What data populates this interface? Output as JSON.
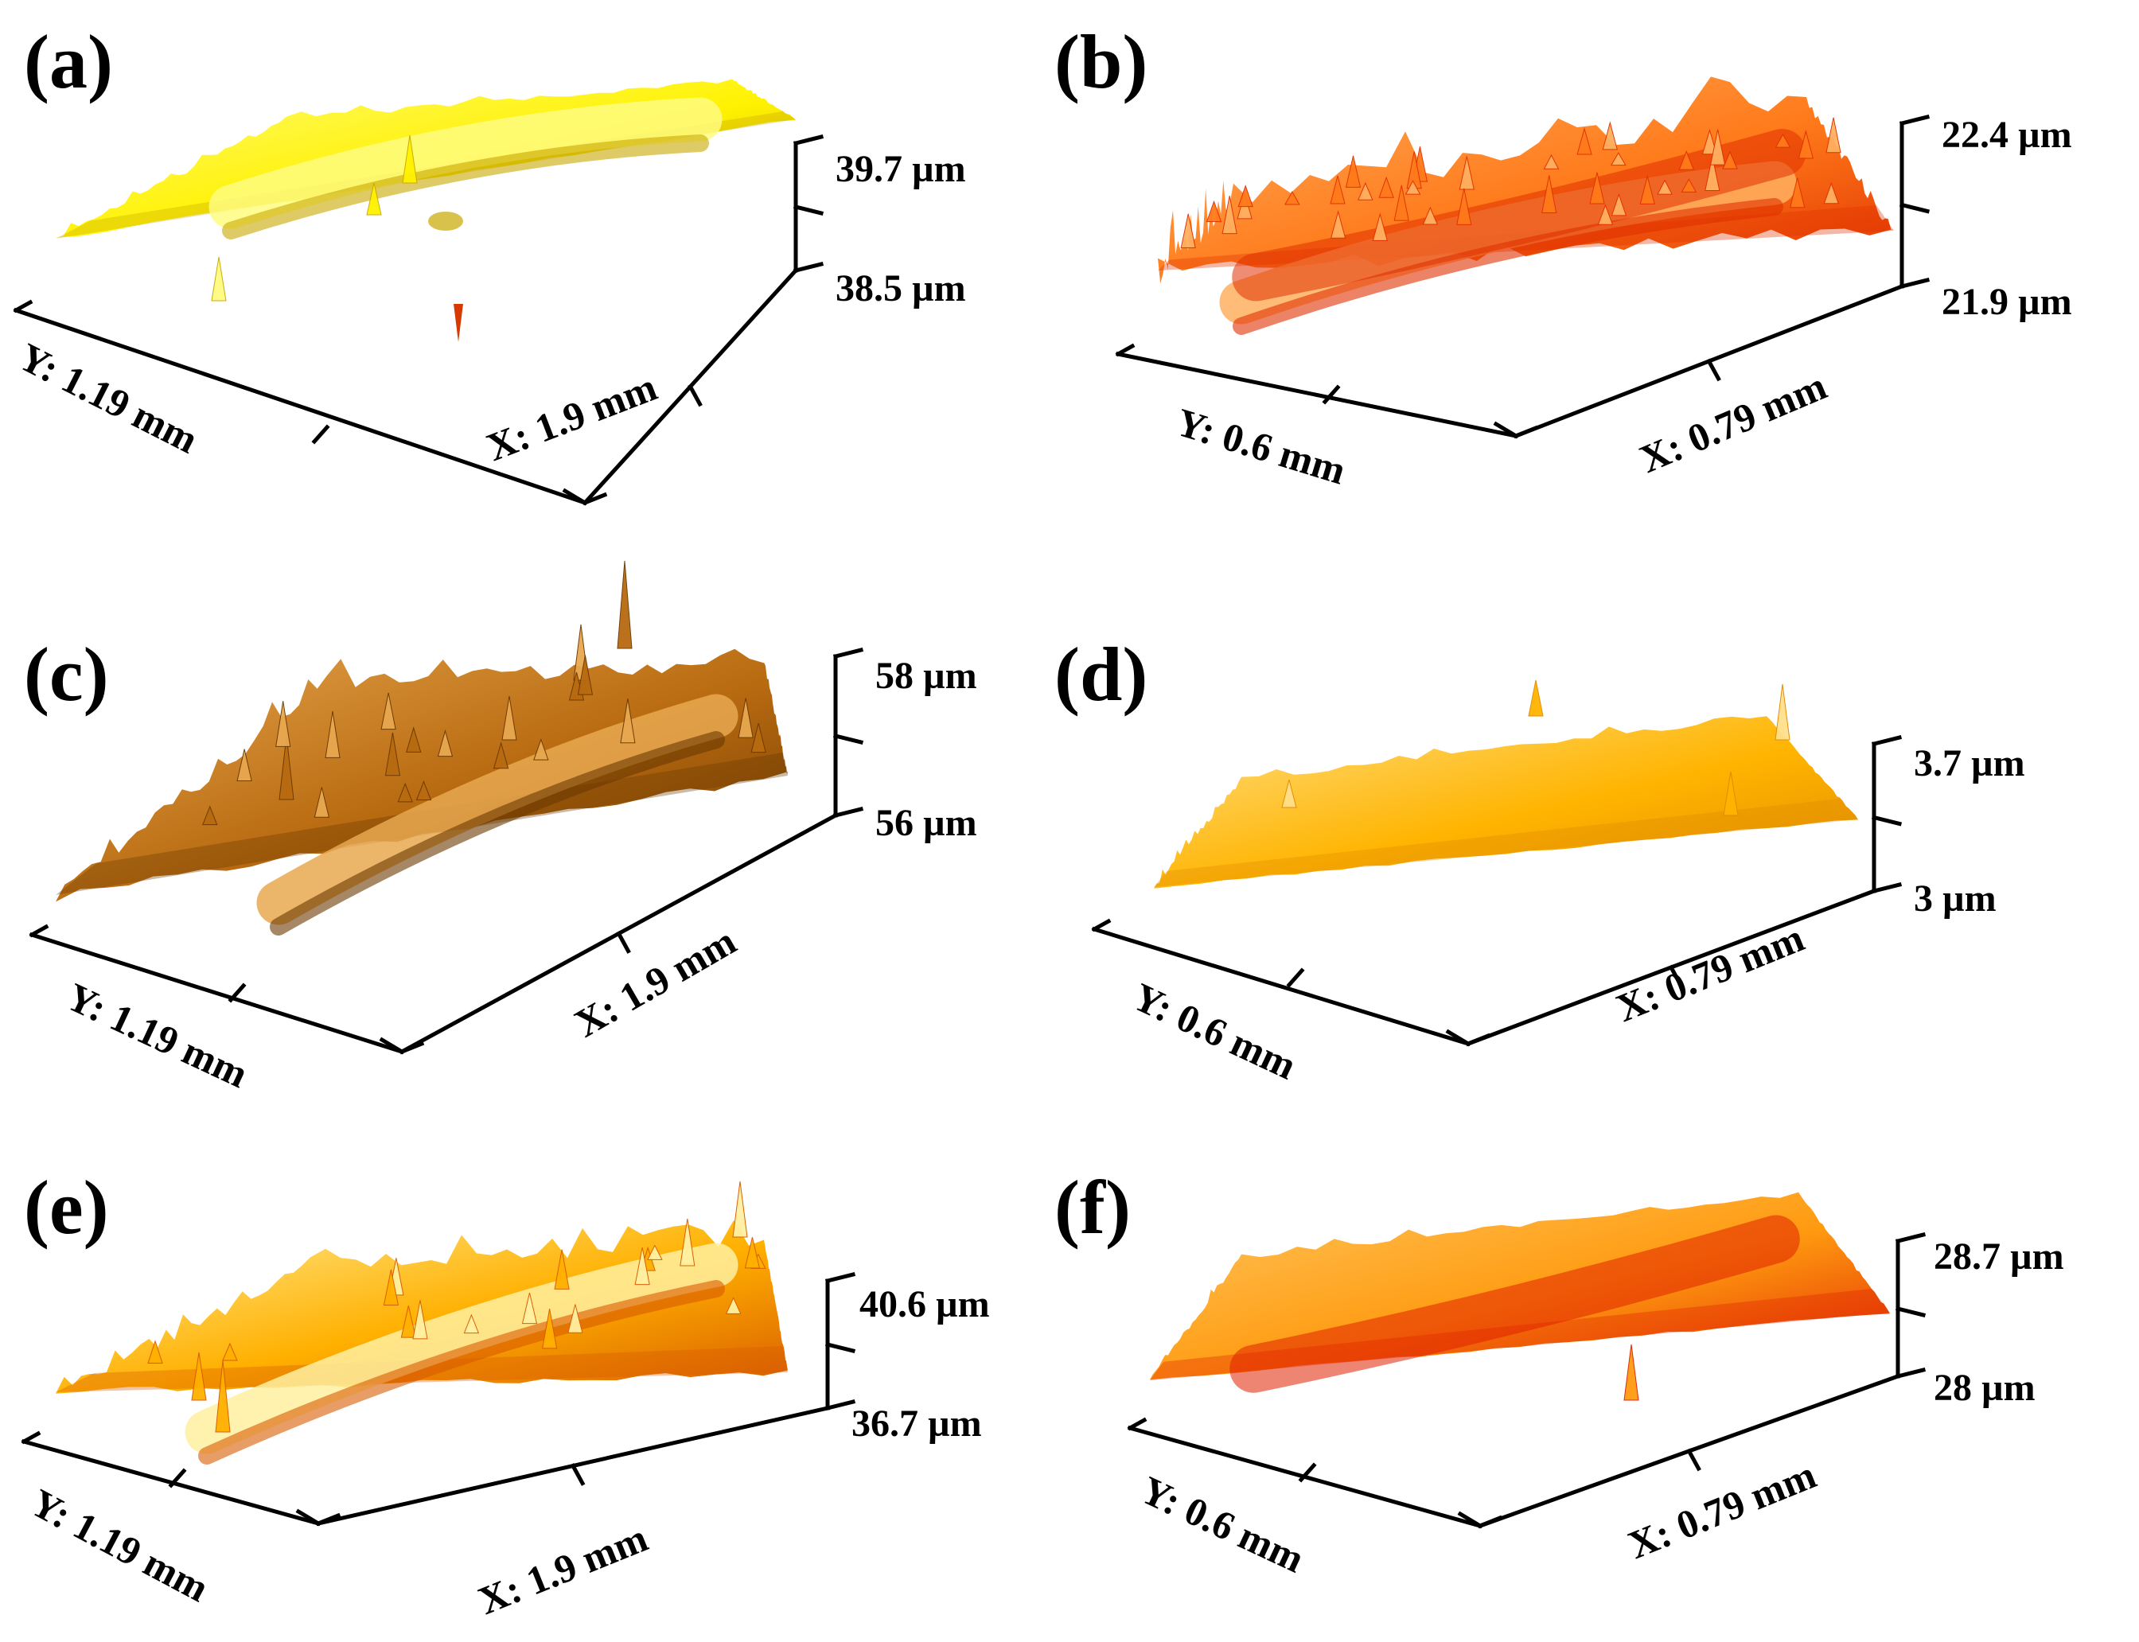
{
  "figure": {
    "panels": [
      {
        "id": "a",
        "label": "(a)",
        "z_top": "39.7 µm",
        "z_bottom": "38.5 µm",
        "y_label": "Y: 1.19 mm",
        "x_label": "X: 1.9 mm",
        "surface": {
          "base": "#fff200",
          "light": "#fffb80",
          "dark": "#c8a800",
          "feature": "smooth groove with single pit",
          "roughness": "low"
        }
      },
      {
        "id": "b",
        "label": "(b)",
        "z_top": "22.4 µm",
        "z_bottom": "21.9 µm",
        "y_label": "Y: 0.6 mm",
        "x_label": "X: 0.79 mm",
        "surface": {
          "base": "#ff7a1a",
          "light": "#ffb060",
          "dark": "#e03000",
          "feature": "rough surface with central trench",
          "roughness": "high"
        }
      },
      {
        "id": "c",
        "label": "(c)",
        "z_top": "58 µm",
        "z_bottom": "56 µm",
        "y_label": "Y: 1.19 mm",
        "x_label": "X: 1.9 mm",
        "surface": {
          "base": "#b86a10",
          "light": "#e8a850",
          "dark": "#6b3800",
          "feature": "raised ridge with spikes",
          "roughness": "medium"
        }
      },
      {
        "id": "d",
        "label": "(d)",
        "z_top": "3.7 µm",
        "z_bottom": "3 µm",
        "y_label": "Y: 0.6 mm",
        "x_label": "X: 0.79 mm",
        "surface": {
          "base": "#ffb400",
          "light": "#ffe08a",
          "dark": "#e08a00",
          "feature": "nearly flat surface with sparse peaks",
          "roughness": "low"
        }
      },
      {
        "id": "e",
        "label": "(e)",
        "z_top": "40.6 µm",
        "z_bottom": "36.7 µm",
        "y_label": "Y: 1.19 mm",
        "x_label": "X: 1.9 mm",
        "surface": {
          "base": "#ffb000",
          "light": "#fff0a0",
          "dark": "#d85a00",
          "feature": "pale ridge with spiky crest",
          "roughness": "medium"
        }
      },
      {
        "id": "f",
        "label": "(f)",
        "z_top": "28.7 µm",
        "z_bottom": "28 µm",
        "y_label": "Y: 0.6 mm",
        "x_label": "X: 0.79 mm",
        "surface": {
          "base": "#ff9a10",
          "light": "#ffc860",
          "dark": "#e02000",
          "feature": "smooth surface with dark wear track",
          "roughness": "low"
        }
      }
    ]
  }
}
